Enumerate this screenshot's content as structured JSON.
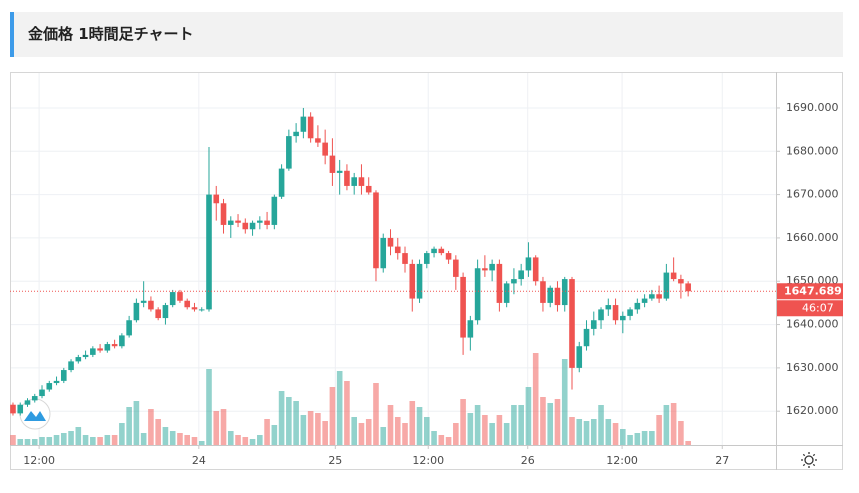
{
  "header": {
    "title": "金価格 1時間足チャート"
  },
  "chart_data": {
    "type": "candlestick",
    "xlim": [
      -0.41,
      105.1
    ],
    "xticks": [
      {
        "value": 3.6,
        "label": "12:00"
      },
      {
        "value": 25.6,
        "label": "24"
      },
      {
        "value": 44.4,
        "label": "25"
      },
      {
        "value": 57.2,
        "label": "12:00"
      },
      {
        "value": 70.9,
        "label": "26"
      },
      {
        "value": 83.9,
        "label": "12:00"
      },
      {
        "value": 97.7,
        "label": "27"
      }
    ],
    "ylim": [
      1612.2,
      1698.3
    ],
    "yticks": [
      {
        "value": 1620,
        "label": "1620.000"
      },
      {
        "value": 1630,
        "label": "1630.000"
      },
      {
        "value": 1640,
        "label": "1640.000"
      },
      {
        "value": 1650,
        "label": "1650.000"
      },
      {
        "value": 1660,
        "label": "1660.000"
      },
      {
        "value": 1670,
        "label": "1670.000"
      },
      {
        "value": 1680,
        "label": "1680.000"
      },
      {
        "value": 1690,
        "label": "1690.000"
      }
    ],
    "grid": true,
    "up_color": "#26a69a",
    "down_color": "#ef5350",
    "open": [
      1621.5,
      1619.5,
      1621.5,
      1622.5,
      1623.5,
      1625,
      1626.5,
      1627,
      1629.5,
      1631.5,
      1632.5,
      1633,
      1634.5,
      1634,
      1635.5,
      1635,
      1637.5,
      1641,
      1645,
      1645.5,
      1643.5,
      1641.5,
      1644.5,
      1647.5,
      1645.5,
      1644,
      1643.5,
      1643.5,
      1670,
      1668,
      1663,
      1664,
      1663.5,
      1662,
      1663.5,
      1664,
      1663,
      1669.5,
      1676,
      1683.5,
      1684.5,
      1688,
      1683,
      1682,
      1679,
      1675,
      1675.5,
      1672,
      1674,
      1672,
      1670.5,
      1653,
      1660,
      1658,
      1656.5,
      1654,
      1646,
      1654,
      1656.5,
      1657.5,
      1656.5,
      1655,
      1651,
      1637,
      1641,
      1653,
      1652.5,
      1654,
      1645,
      1649.5,
      1650.5,
      1652.5,
      1655.5,
      1650,
      1645,
      1648.5,
      1644.5,
      1650.5,
      1630,
      1635,
      1639,
      1641,
      1643.5,
      1644.5,
      1641,
      1642,
      1643.5,
      1645,
      1646,
      1647,
      1646,
      1652,
      1650.5,
      1649.5
    ],
    "high": [
      1622,
      1622,
      1623,
      1624,
      1626,
      1627,
      1628,
      1630,
      1632,
      1633,
      1634,
      1635,
      1635.5,
      1636,
      1636.5,
      1638,
      1642,
      1646,
      1650,
      1646.5,
      1644,
      1645,
      1648,
      1648,
      1646,
      1645,
      1644,
      1681,
      1672,
      1669,
      1665,
      1665.5,
      1664.5,
      1664,
      1665,
      1666,
      1670,
      1677,
      1685,
      1686.5,
      1690,
      1689,
      1686,
      1685,
      1683,
      1678,
      1677,
      1675,
      1677,
      1674,
      1671,
      1661,
      1662,
      1660,
      1658,
      1655,
      1655,
      1657,
      1658,
      1658,
      1657,
      1656,
      1652,
      1642,
      1655,
      1656,
      1655,
      1655,
      1650,
      1653,
      1654,
      1659,
      1656,
      1651,
      1649,
      1650,
      1651,
      1651,
      1636,
      1641,
      1643,
      1644,
      1646,
      1646,
      1643,
      1644,
      1646,
      1647,
      1648,
      1649,
      1654,
      1655.5,
      1651.5,
      1650
    ],
    "low": [
      1619,
      1619,
      1621,
      1622,
      1623,
      1624.5,
      1626,
      1626.5,
      1629,
      1631,
      1632,
      1632.5,
      1633.5,
      1633.5,
      1634.5,
      1634.5,
      1637,
      1640.5,
      1644,
      1643,
      1641,
      1640,
      1644,
      1645,
      1643.5,
      1643,
      1643,
      1643,
      1664,
      1661,
      1660,
      1662.5,
      1661,
      1660.5,
      1662,
      1662,
      1662,
      1669,
      1675.5,
      1682,
      1683,
      1682,
      1681,
      1677,
      1672,
      1670,
      1671,
      1670,
      1670,
      1670,
      1650,
      1652,
      1656,
      1655,
      1652,
      1643,
      1645,
      1653,
      1655.5,
      1656,
      1654,
      1648,
      1633,
      1634,
      1640,
      1651,
      1650,
      1643,
      1644,
      1647,
      1649,
      1651,
      1649,
      1643,
      1644,
      1643,
      1643,
      1625,
      1629,
      1634,
      1637.5,
      1639,
      1642,
      1640,
      1638,
      1641,
      1642.5,
      1644,
      1645.5,
      1645,
      1645.5,
      1650,
      1646,
      1646.5
    ],
    "close": [
      1619.5,
      1621.5,
      1622.5,
      1623.5,
      1625,
      1626.5,
      1627,
      1629.5,
      1631.5,
      1632.5,
      1633,
      1634.5,
      1634,
      1635.5,
      1635,
      1637.5,
      1641,
      1645,
      1645.5,
      1643.5,
      1641.5,
      1644.5,
      1647.5,
      1645.5,
      1644,
      1643.5,
      1643.5,
      1670,
      1668,
      1663,
      1664,
      1663.5,
      1662,
      1663.5,
      1664,
      1663,
      1669.5,
      1676,
      1683.5,
      1684.5,
      1688,
      1683,
      1682,
      1679,
      1675,
      1675.5,
      1672,
      1674,
      1672,
      1670.5,
      1653,
      1660,
      1658,
      1656.5,
      1654,
      1646,
      1654,
      1656.5,
      1657.5,
      1656.5,
      1655,
      1651,
      1637,
      1641,
      1653,
      1652.5,
      1654,
      1645,
      1649.5,
      1650.5,
      1652.5,
      1655.5,
      1650,
      1645,
      1648.5,
      1644.5,
      1650.5,
      1630,
      1635,
      1639,
      1641,
      1643.5,
      1644.5,
      1641,
      1642,
      1643.5,
      1645,
      1646,
      1647,
      1646,
      1652,
      1650.5,
      1649.5,
      1647.689
    ],
    "vlim": [
      0,
      100
    ],
    "volume": [
      10,
      6,
      6,
      6,
      8,
      8,
      10,
      12,
      14,
      18,
      10,
      8,
      8,
      10,
      10,
      22,
      38,
      44,
      12,
      36,
      26,
      18,
      14,
      12,
      10,
      8,
      4,
      76,
      34,
      36,
      14,
      10,
      8,
      6,
      10,
      26,
      20,
      54,
      48,
      44,
      30,
      34,
      32,
      24,
      58,
      74,
      64,
      28,
      22,
      26,
      62,
      18,
      40,
      28,
      22,
      44,
      38,
      28,
      14,
      10,
      8,
      22,
      46,
      32,
      40,
      30,
      22,
      30,
      22,
      40,
      40,
      58,
      92,
      48,
      42,
      46,
      86,
      28,
      26,
      24,
      26,
      40,
      26,
      22,
      16,
      10,
      12,
      14,
      14,
      30,
      40,
      42,
      24,
      4
    ],
    "last_price": 1647.689,
    "countdown": "46:07"
  }
}
